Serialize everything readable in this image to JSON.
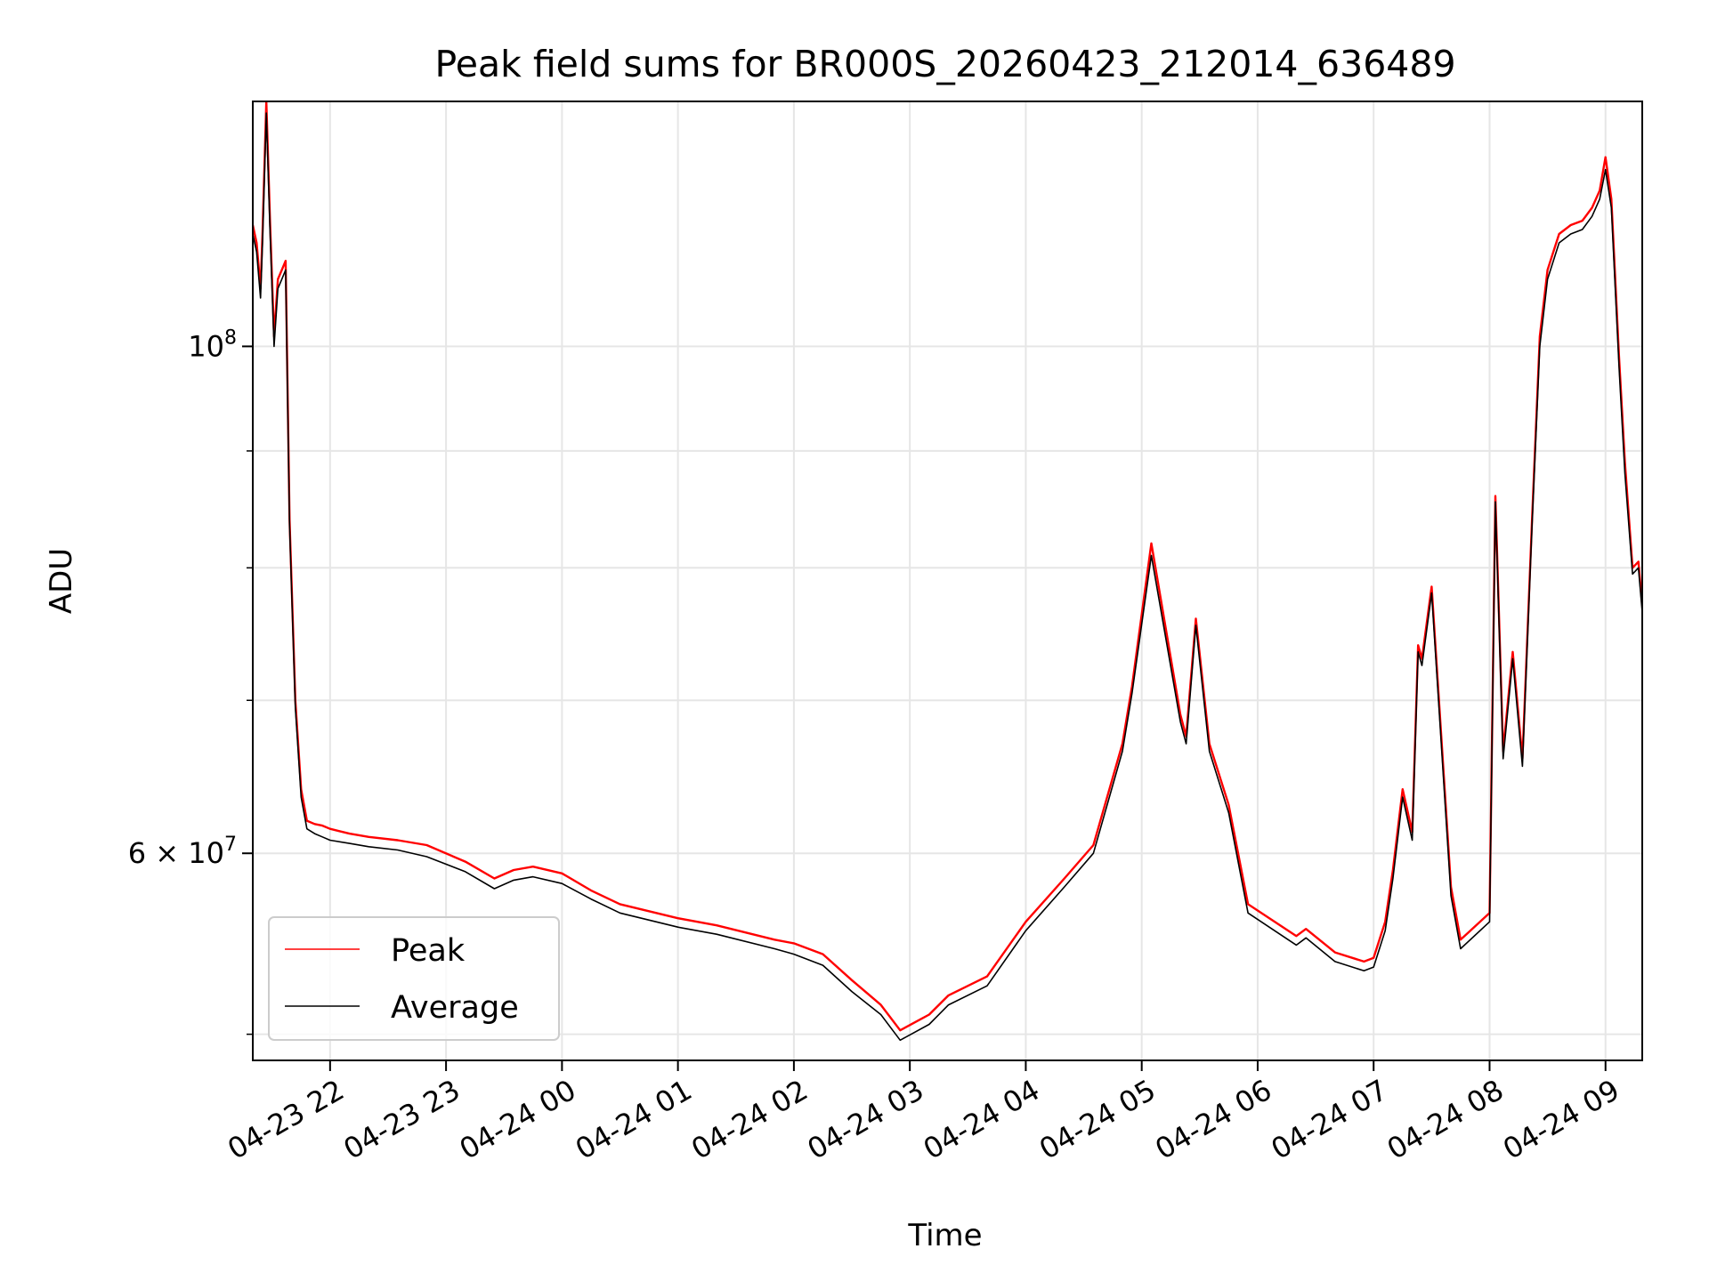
{
  "chart_data": {
    "type": "line",
    "title": "Peak field sums for BR000S_20260423_212014_636489",
    "xlabel": "Time",
    "ylabel": "ADU",
    "yscale": "log",
    "ylim": [
      48700000,
      128000000
    ],
    "xlim": [
      "2026-04-23 21:20",
      "2026-04-24 09:19"
    ],
    "grid": true,
    "legend_position": "lower left",
    "x_ticks": [
      "04-23 22",
      "04-23 23",
      "04-24 00",
      "04-24 01",
      "04-24 02",
      "04-24 03",
      "04-24 04",
      "04-24 05",
      "04-24 06",
      "04-24 07",
      "04-24 08",
      "04-24 09"
    ],
    "y_ticks": [
      {
        "value": 100000000,
        "mantissa": "",
        "exponent": "8"
      },
      {
        "value": 60000000,
        "mantissa": "6",
        "exponent": "7"
      }
    ],
    "y_minor_ticks": [
      50000000,
      70000000,
      80000000,
      90000000
    ],
    "x": [
      "2026-04-23 21:20",
      "2026-04-23 21:22",
      "2026-04-23 21:24",
      "2026-04-23 21:25",
      "2026-04-23 21:27",
      "2026-04-23 21:29",
      "2026-04-23 21:31",
      "2026-04-23 21:33",
      "2026-04-23 21:35",
      "2026-04-23 21:37",
      "2026-04-23 21:39",
      "2026-04-23 21:42",
      "2026-04-23 21:45",
      "2026-04-23 21:48",
      "2026-04-23 21:52",
      "2026-04-23 21:56",
      "2026-04-23 22:00",
      "2026-04-23 22:10",
      "2026-04-23 22:20",
      "2026-04-23 22:35",
      "2026-04-23 22:50",
      "2026-04-23 23:10",
      "2026-04-23 23:25",
      "2026-04-23 23:35",
      "2026-04-23 23:45",
      "2026-04-24 00:00",
      "2026-04-24 00:15",
      "2026-04-24 00:30",
      "2026-04-24 01:00",
      "2026-04-24 01:20",
      "2026-04-24 01:50",
      "2026-04-24 02:00",
      "2026-04-24 02:15",
      "2026-04-24 02:30",
      "2026-04-24 02:45",
      "2026-04-24 02:55",
      "2026-04-24 03:10",
      "2026-04-24 03:20",
      "2026-04-24 03:40",
      "2026-04-24 04:00",
      "2026-04-24 04:20",
      "2026-04-24 04:35",
      "2026-04-24 04:50",
      "2026-04-24 04:55",
      "2026-04-24 05:05",
      "2026-04-24 05:20",
      "2026-04-24 05:23",
      "2026-04-24 05:28",
      "2026-04-24 05:35",
      "2026-04-24 05:45",
      "2026-04-24 05:55",
      "2026-04-24 06:20",
      "2026-04-24 06:25",
      "2026-04-24 06:40",
      "2026-04-24 06:55",
      "2026-04-24 07:00",
      "2026-04-24 07:06",
      "2026-04-24 07:10",
      "2026-04-24 07:15",
      "2026-04-24 07:20",
      "2026-04-24 07:23",
      "2026-04-24 07:25",
      "2026-04-24 07:30",
      "2026-04-24 07:40",
      "2026-04-24 07:45",
      "2026-04-24 08:00",
      "2026-04-24 08:03",
      "2026-04-24 08:07",
      "2026-04-24 08:12",
      "2026-04-24 08:17",
      "2026-04-24 08:22",
      "2026-04-24 08:26",
      "2026-04-24 08:30",
      "2026-04-24 08:36",
      "2026-04-24 08:42",
      "2026-04-24 08:48",
      "2026-04-24 08:53",
      "2026-04-24 08:57",
      "2026-04-24 09:00",
      "2026-04-24 09:03",
      "2026-04-24 09:07",
      "2026-04-24 09:10",
      "2026-04-24 09:14",
      "2026-04-24 09:17",
      "2026-04-24 09:19"
    ],
    "series": [
      {
        "name": "Peak",
        "color": "#ff0000",
        "values": [
          113000000,
          111000000,
          106000000,
          112000000,
          128000000,
          113000000,
          101000000,
          107000000,
          108000000,
          109000000,
          84000000,
          70000000,
          64000000,
          62000000,
          61800000,
          61700000,
          61500000,
          61200000,
          61000000,
          60800000,
          60500000,
          59500000,
          58500000,
          59000000,
          59200000,
          58800000,
          57800000,
          57000000,
          56200000,
          55800000,
          55000000,
          54800000,
          54200000,
          52800000,
          51500000,
          50200000,
          51000000,
          52000000,
          53000000,
          56000000,
          58500000,
          60500000,
          67000000,
          71000000,
          82000000,
          69000000,
          67500000,
          76000000,
          67000000,
          63000000,
          57000000,
          55200000,
          55600000,
          54300000,
          53800000,
          54000000,
          56000000,
          59000000,
          64000000,
          61300000,
          74000000,
          73000000,
          78500000,
          58000000,
          55000000,
          56500000,
          86000000,
          66500000,
          73500000,
          66000000,
          84000000,
          101000000,
          108000000,
          112000000,
          113000000,
          113500000,
          115000000,
          117000000,
          121000000,
          116000000,
          99000000,
          89000000,
          80000000,
          80500000,
          77000000
        ]
      },
      {
        "name": "Average",
        "color": "#000000",
        "values": [
          112000000,
          110000000,
          105000000,
          111000000,
          126500000,
          112000000,
          100000000,
          106000000,
          107000000,
          108000000,
          83500000,
          69500000,
          63500000,
          61500000,
          61200000,
          61000000,
          60800000,
          60600000,
          60400000,
          60200000,
          59800000,
          58900000,
          57900000,
          58400000,
          58600000,
          58200000,
          57300000,
          56500000,
          55700000,
          55300000,
          54500000,
          54200000,
          53600000,
          52200000,
          51000000,
          49700000,
          50500000,
          51500000,
          52500000,
          55500000,
          58000000,
          60000000,
          66500000,
          70500000,
          81000000,
          68500000,
          67000000,
          75500000,
          66500000,
          62500000,
          56500000,
          54700000,
          55100000,
          53800000,
          53300000,
          53500000,
          55500000,
          58500000,
          63500000,
          60800000,
          73500000,
          72500000,
          78000000,
          57500000,
          54500000,
          56000000,
          85500000,
          66000000,
          73000000,
          65500000,
          83500000,
          100000000,
          107000000,
          111000000,
          112000000,
          112500000,
          114000000,
          116000000,
          119500000,
          115000000,
          98000000,
          88000000,
          79500000,
          80000000,
          76500000
        ]
      }
    ]
  }
}
